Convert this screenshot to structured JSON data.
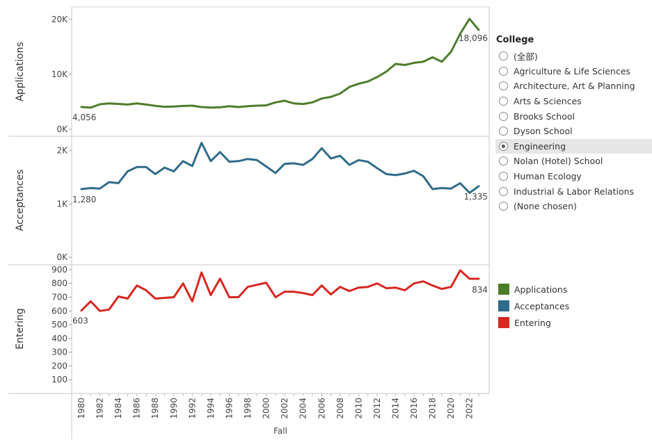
{
  "chart_data": {
    "type": "line",
    "xlabel": "Fall",
    "x": [
      1980,
      1981,
      1982,
      1983,
      1984,
      1985,
      1986,
      1987,
      1988,
      1989,
      1990,
      1991,
      1992,
      1993,
      1994,
      1995,
      1996,
      1997,
      1998,
      1999,
      2000,
      2001,
      2002,
      2003,
      2004,
      2005,
      2006,
      2007,
      2008,
      2009,
      2010,
      2011,
      2012,
      2013,
      2014,
      2015,
      2016,
      2017,
      2018,
      2019,
      2020,
      2021,
      2022,
      2023
    ],
    "x_tick_labels": [
      "1980",
      "1982",
      "1984",
      "1986",
      "1988",
      "1990",
      "1992",
      "1994",
      "1996",
      "1998",
      "2000",
      "2002",
      "2004",
      "2006",
      "2008",
      "2010",
      "2012",
      "2014",
      "2016",
      "2018",
      "2020",
      "2022"
    ],
    "panels": [
      {
        "ylabel": "Applications",
        "ylim": [
          0,
          21000
        ],
        "yticks": [
          0,
          10000,
          20000
        ],
        "ytick_labels": [
          "0K",
          "10K",
          "20K"
        ],
        "series": [
          {
            "name": "Applications",
            "color": "#4e7d2a",
            "values": [
              4056,
              3950,
              4550,
              4700,
              4620,
              4500,
              4700,
              4500,
              4270,
              4100,
              4150,
              4250,
              4300,
              4050,
              3950,
              4000,
              4200,
              4050,
              4200,
              4300,
              4350,
              4900,
              5200,
              4700,
              4600,
              4900,
              5600,
              5900,
              6500,
              7700,
              8300,
              8700,
              9500,
              10500,
              11900,
              11700,
              12100,
              12300,
              13100,
              12300,
              14100,
              17400,
              20100,
              18096
            ]
          }
        ],
        "annotations": [
          {
            "x": 1980,
            "text": "4,056"
          },
          {
            "x": 2023,
            "text": "18,096"
          }
        ]
      },
      {
        "ylabel": "Acceptances",
        "ylim": [
          0,
          2250
        ],
        "yticks": [
          0,
          1000,
          2000
        ],
        "ytick_labels": [
          "0K",
          "1K",
          "2K"
        ],
        "series": [
          {
            "name": "Acceptances",
            "color": "#2f6b8a",
            "values": [
              1280,
              1300,
              1290,
              1410,
              1390,
              1610,
              1690,
              1690,
              1560,
              1680,
              1610,
              1800,
              1710,
              2140,
              1800,
              1970,
              1790,
              1800,
              1840,
              1820,
              1700,
              1580,
              1750,
              1760,
              1730,
              1840,
              2040,
              1850,
              1900,
              1730,
              1820,
              1790,
              1670,
              1560,
              1540,
              1570,
              1620,
              1520,
              1280,
              1300,
              1290,
              1390,
              1210,
              1335
            ]
          }
        ],
        "annotations": [
          {
            "x": 1980,
            "text": "1,280"
          },
          {
            "x": 2023,
            "text": "1,335"
          }
        ]
      },
      {
        "ylabel": "Entering",
        "ylim": [
          0,
          930
        ],
        "yticks": [
          100,
          200,
          300,
          400,
          500,
          600,
          700,
          800,
          900
        ],
        "ytick_labels": [
          "100",
          "200",
          "300",
          "400",
          "500",
          "600",
          "700",
          "800",
          "900"
        ],
        "series": [
          {
            "name": "Entering",
            "color": "#d62720",
            "values": [
              603,
              670,
              600,
              610,
              705,
              690,
              785,
              750,
              690,
              695,
              700,
              800,
              670,
              880,
              715,
              835,
              700,
              700,
              775,
              790,
              805,
              700,
              740,
              740,
              730,
              715,
              785,
              720,
              775,
              745,
              770,
              775,
              800,
              765,
              770,
              750,
              800,
              815,
              785,
              760,
              775,
              895,
              834,
              834
            ]
          }
        ],
        "annotations": [
          {
            "x": 1980,
            "text": "603"
          },
          {
            "x": 2023,
            "text": "834"
          }
        ]
      }
    ]
  },
  "college_filter": {
    "title": "College",
    "selected": "Engineering",
    "options": [
      "(全部)",
      "Agriculture & Life Sciences",
      "Architecture, Art & Planning",
      "Arts & Sciences",
      "Brooks School",
      "Dyson School",
      "Engineering",
      "Nolan (Hotel) School",
      "Human Ecology",
      "Industrial & Labor Relations",
      "(None chosen)"
    ]
  },
  "series_legend": [
    {
      "label": "Applications",
      "color": "#4e7d2a"
    },
    {
      "label": "Acceptances",
      "color": "#2f6b8a"
    },
    {
      "label": "Entering",
      "color": "#d62720"
    }
  ]
}
